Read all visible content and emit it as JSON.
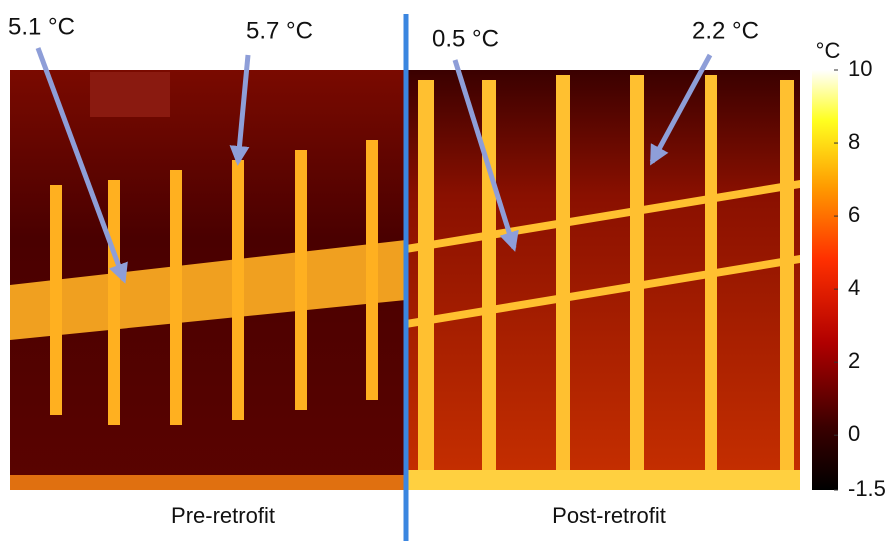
{
  "annotations": [
    {
      "label": "5.1 °C"
    },
    {
      "label": "5.7 °C"
    },
    {
      "label": "0.5 °C"
    },
    {
      "label": "2.2 °C"
    }
  ],
  "captions": [
    "Pre-retrofit",
    "Post-retrofit"
  ],
  "colorbar": {
    "unit": "°C",
    "ticks": [
      10,
      8,
      6,
      4,
      2,
      0,
      -1.5
    ]
  }
}
